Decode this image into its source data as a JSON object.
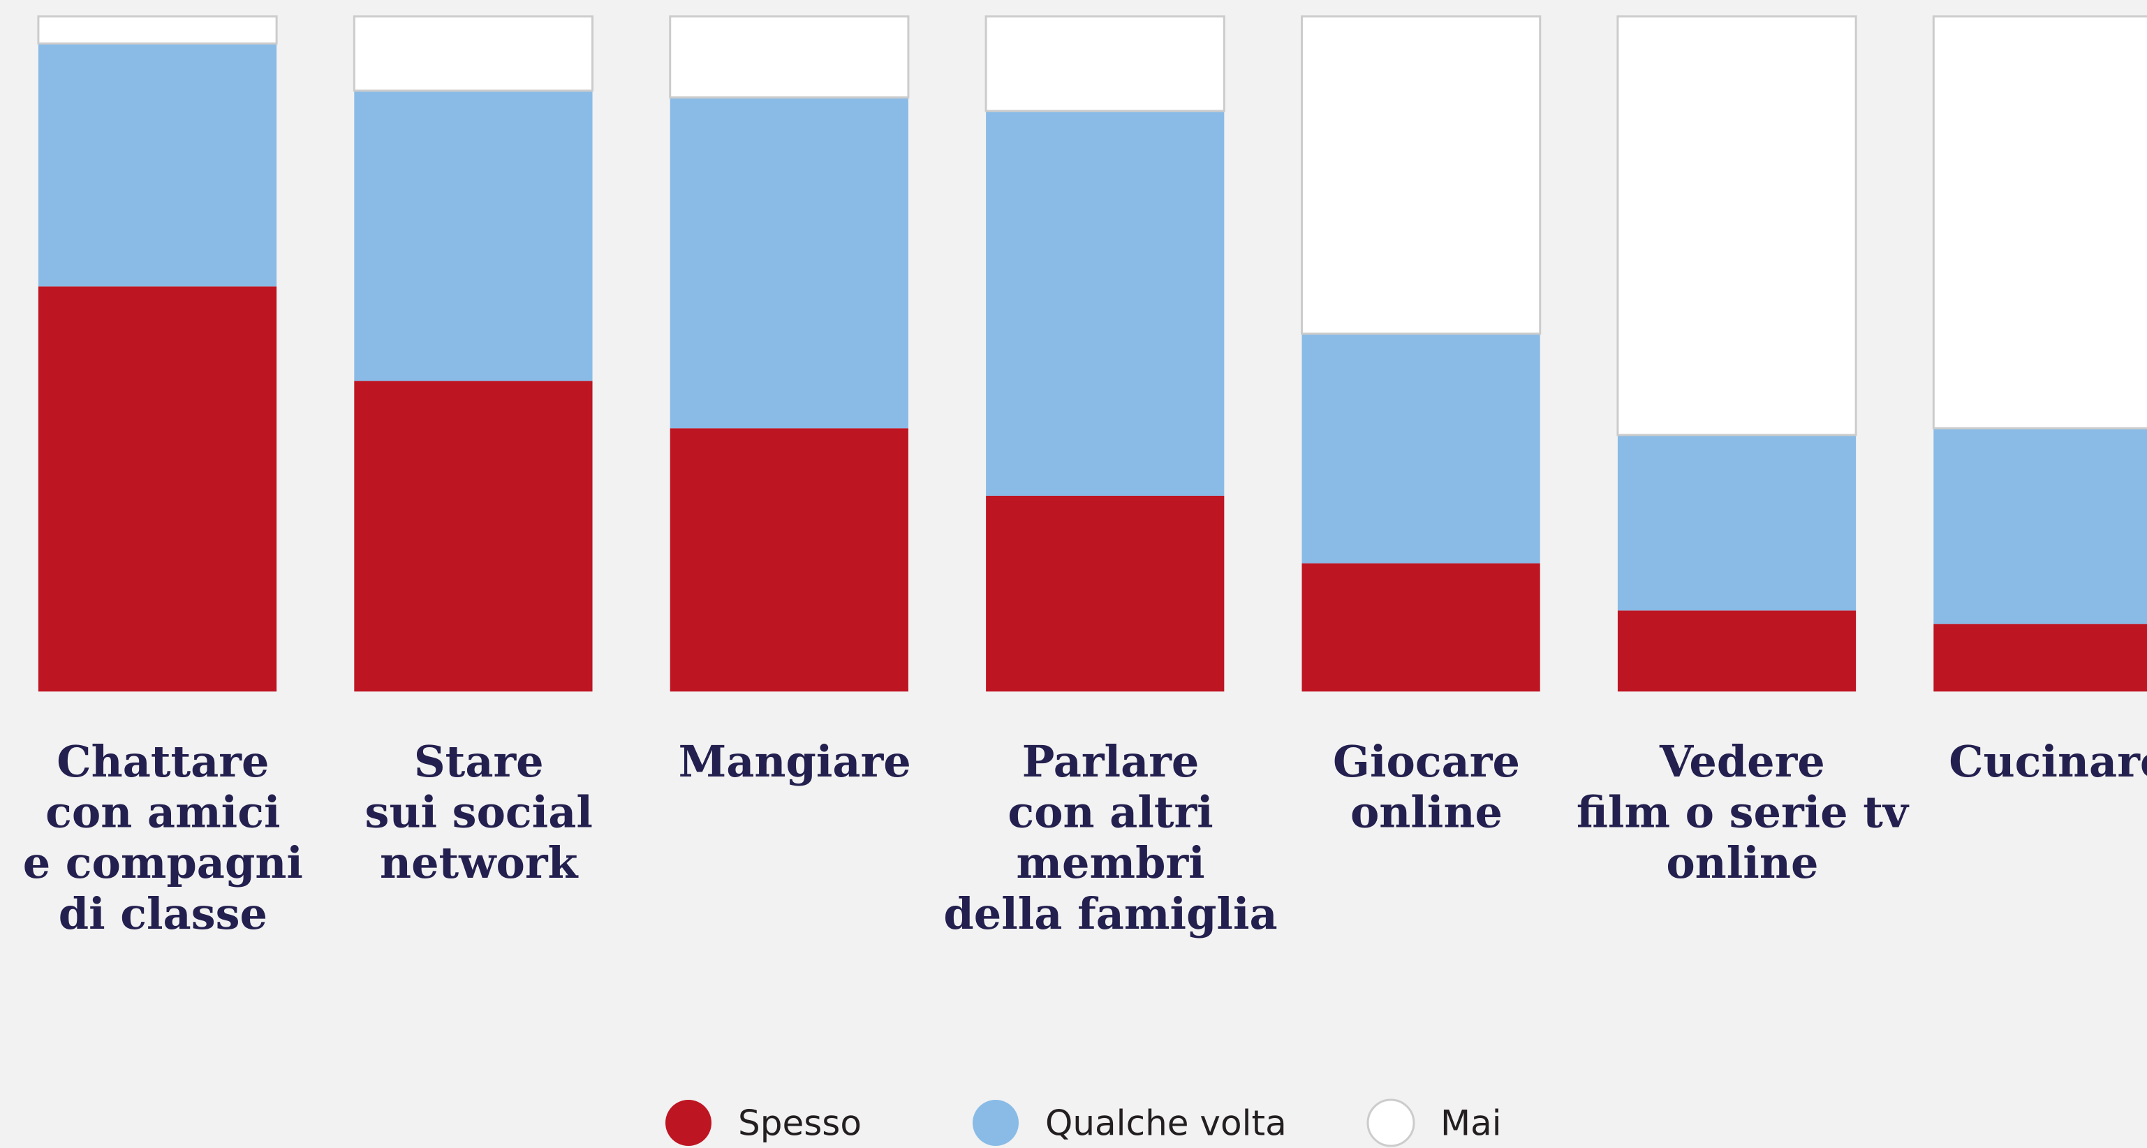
{
  "chart_data": {
    "type": "bar",
    "stacked": true,
    "categories": [
      "Chattare\ncon amici\ne compagni\ndi classe",
      "Stare\nsui social\nnetwork",
      "Mangiare",
      "Parlare\ncon altri\nmembri\ndella famiglia",
      "Giocare\nonline",
      "Vedere\nfilm o serie tv\nonline",
      "Cucinare"
    ],
    "series": [
      {
        "name": "Spesso",
        "color": "#be1522",
        "values": [
          60,
          46,
          39,
          29,
          19,
          12,
          10
        ]
      },
      {
        "name": "Qualche volta",
        "color": "#89bbe6",
        "values": [
          36,
          43,
          49,
          57,
          34,
          26,
          29
        ]
      },
      {
        "name": "Mai",
        "color": "#ffffff",
        "values": [
          4,
          11,
          12,
          14,
          47,
          62,
          61
        ]
      }
    ],
    "ylim": [
      0,
      100
    ],
    "legend": "bottom"
  }
}
